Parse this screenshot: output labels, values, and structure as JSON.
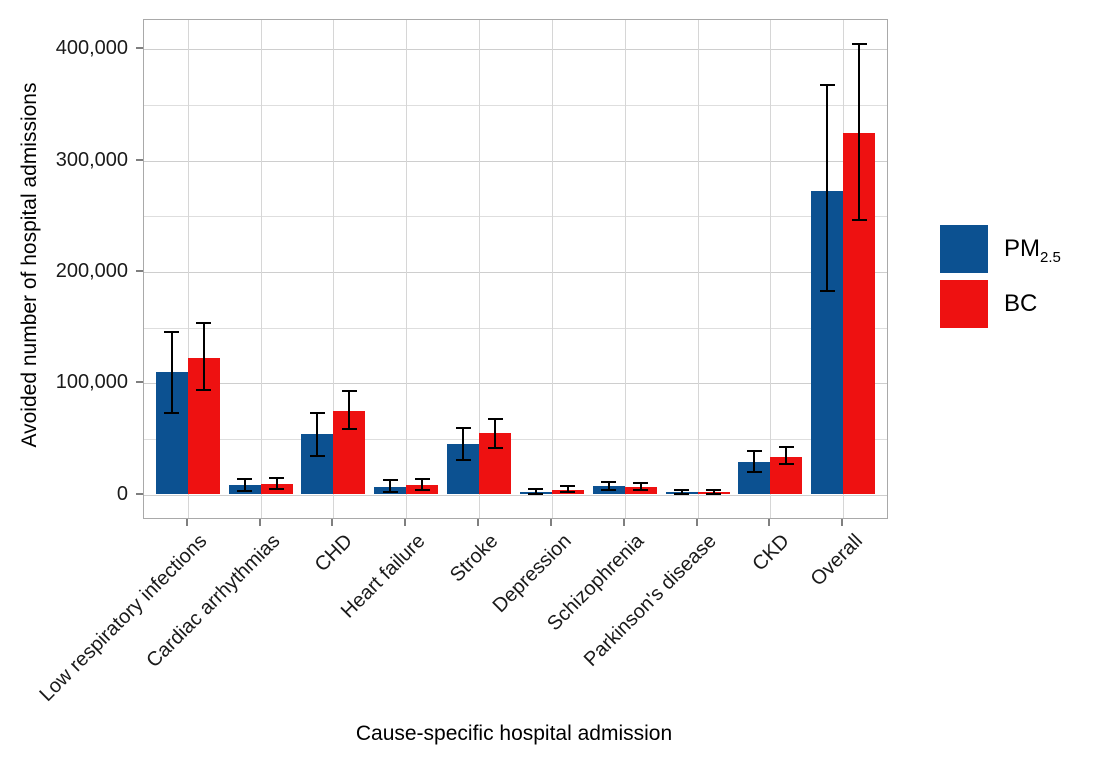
{
  "figure": {
    "yaxis_title": "Avoided number of hospital admissions",
    "xaxis_title": "Cause-specific hospital admission"
  },
  "legend": {
    "items": [
      {
        "series": "PM2.5",
        "label_main": "PM",
        "label_sub": "2.5",
        "color": "#0c5191"
      },
      {
        "series": "BC",
        "label_main": "BC",
        "label_sub": "",
        "color": "#ee1111"
      }
    ]
  },
  "chart_data": {
    "type": "bar",
    "title": "",
    "xlabel": "Cause-specific hospital admission",
    "ylabel": "Avoided number of hospital admissions",
    "grid": "on",
    "legend_position": "right",
    "error_bars": true,
    "categories": [
      "Low respiratory infections",
      "Cardiac arrhythmias",
      "CHD",
      "Heart failure",
      "Stroke",
      "Depression",
      "Schizophrenia",
      "Parkinson's disease",
      "CKD",
      "Overall"
    ],
    "series": [
      {
        "name": "PM2.5",
        "color": "#0c5191",
        "values": [
          110000,
          8500,
          54000,
          7000,
          45000,
          2500,
          7200,
          1800,
          29000,
          273000
        ],
        "ci_low": [
          73000,
          3200,
          35000,
          2500,
          31000,
          800,
          4300,
          400,
          20000,
          183000
        ],
        "ci_high": [
          146000,
          13800,
          73000,
          13000,
          60000,
          5200,
          11000,
          4200,
          39000,
          368000
        ]
      },
      {
        "name": "BC",
        "color": "#ee1111",
        "values": [
          123000,
          9300,
          75000,
          8500,
          55000,
          4200,
          6600,
          1900,
          34000,
          325000
        ],
        "ci_low": [
          93500,
          4700,
          59000,
          4000,
          42000,
          1800,
          3600,
          500,
          27000,
          247000
        ],
        "ci_high": [
          154000,
          15100,
          93000,
          14000,
          68000,
          7300,
          10200,
          4300,
          43000,
          405000
        ]
      }
    ],
    "yaxis": {
      "ticks": [
        {
          "value": 0,
          "label": "0"
        },
        {
          "value": 100000,
          "label": "100,000"
        },
        {
          "value": 200000,
          "label": "200,000"
        },
        {
          "value": 300000,
          "label": "300,000"
        },
        {
          "value": 400000,
          "label": "400,000"
        }
      ],
      "minor_gridlines": [
        50000,
        150000,
        250000,
        350000
      ],
      "range_approx": [
        -19500,
        426000
      ]
    }
  }
}
